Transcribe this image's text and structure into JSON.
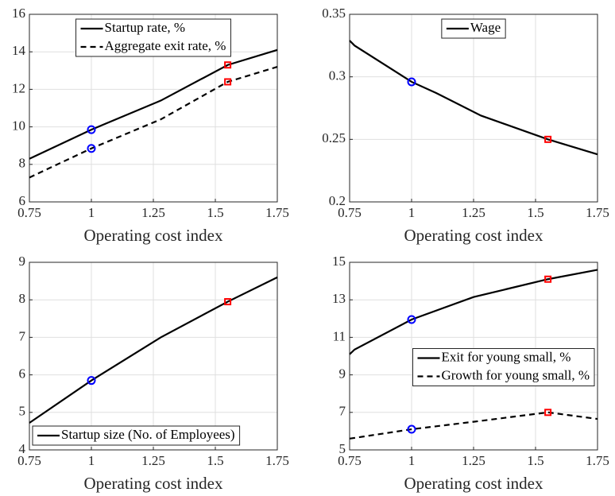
{
  "chart_data": [
    {
      "type": "line",
      "xlabel": "Operating cost index",
      "xlim": [
        0.75,
        1.75
      ],
      "xticks": [
        0.75,
        1,
        1.25,
        1.5,
        1.75
      ],
      "ylim": [
        6,
        16
      ],
      "yticks": [
        6,
        8,
        10,
        12,
        14,
        16
      ],
      "grid": true,
      "legend": "top",
      "markers": [
        {
          "x": 1,
          "shape": "circle",
          "color": "#0000ff"
        },
        {
          "x": 1.55,
          "shape": "square",
          "color": "#ff0000"
        }
      ],
      "series": [
        {
          "name": "Startup rate, %",
          "color": "#000000",
          "linestyle": "solid",
          "x": [
            0.75,
            1,
            1.28,
            1.55,
            1.75
          ],
          "values": [
            8.3,
            9.85,
            11.4,
            13.3,
            14.1
          ]
        },
        {
          "name": "Aggregate exit rate, %",
          "color": "#000000",
          "linestyle": "dashed",
          "x": [
            0.75,
            1,
            1.28,
            1.55,
            1.75
          ],
          "values": [
            7.3,
            8.85,
            10.4,
            12.4,
            13.2
          ]
        }
      ]
    },
    {
      "type": "line",
      "xlabel": "Operating cost index",
      "xlim": [
        0.75,
        1.75
      ],
      "xticks": [
        0.75,
        1,
        1.25,
        1.5,
        1.75
      ],
      "ylim": [
        0.2,
        0.35
      ],
      "yticks": [
        0.2,
        0.25,
        0.3,
        0.35
      ],
      "grid": true,
      "legend": "top",
      "markers": [
        {
          "x": 1,
          "shape": "circle",
          "color": "#0000ff"
        },
        {
          "x": 1.55,
          "shape": "square",
          "color": "#ff0000"
        }
      ],
      "series": [
        {
          "name": "Wage",
          "color": "#000000",
          "linestyle": "solid",
          "x": [
            0.75,
            0.77,
            1,
            1.1,
            1.28,
            1.55,
            1.75
          ],
          "values": [
            0.329,
            0.325,
            0.296,
            0.287,
            0.269,
            0.25,
            0.238
          ]
        }
      ]
    },
    {
      "type": "line",
      "xlabel": "Operating cost index",
      "xlim": [
        0.75,
        1.75
      ],
      "xticks": [
        0.75,
        1,
        1.25,
        1.5,
        1.75
      ],
      "ylim": [
        4,
        9
      ],
      "yticks": [
        4,
        5,
        6,
        7,
        8,
        9
      ],
      "grid": true,
      "legend": "bottom left",
      "markers": [
        {
          "x": 1,
          "shape": "circle",
          "color": "#0000ff"
        },
        {
          "x": 1.55,
          "shape": "square",
          "color": "#ff0000"
        }
      ],
      "series": [
        {
          "name": "Startup size (No. of Employees)",
          "color": "#000000",
          "linestyle": "solid",
          "x": [
            0.75,
            1,
            1.28,
            1.55,
            1.75
          ],
          "values": [
            4.72,
            5.85,
            7.0,
            7.95,
            8.6
          ]
        }
      ]
    },
    {
      "type": "line",
      "xlabel": "Operating cost index",
      "xlim": [
        0.75,
        1.75
      ],
      "xticks": [
        0.75,
        1,
        1.25,
        1.5,
        1.75
      ],
      "ylim": [
        5,
        15
      ],
      "yticks": [
        5,
        7,
        9,
        11,
        13,
        15
      ],
      "grid": true,
      "legend": "right",
      "markers": [
        {
          "x": 1,
          "shape": "circle",
          "color": "#0000ff"
        },
        {
          "x": 1.55,
          "shape": "square",
          "color": "#ff0000"
        }
      ],
      "series": [
        {
          "name": "Exit for young small, %",
          "color": "#000000",
          "linestyle": "solid",
          "x": [
            0.75,
            0.77,
            1,
            1.25,
            1.55,
            1.75
          ],
          "values": [
            10.1,
            10.35,
            11.95,
            13.15,
            14.1,
            14.6
          ]
        },
        {
          "name": "Growth for young small, %",
          "color": "#000000",
          "linestyle": "dashed",
          "x": [
            0.75,
            1,
            1.25,
            1.55,
            1.75
          ],
          "values": [
            5.6,
            6.1,
            6.5,
            7.0,
            6.65
          ]
        }
      ]
    }
  ]
}
